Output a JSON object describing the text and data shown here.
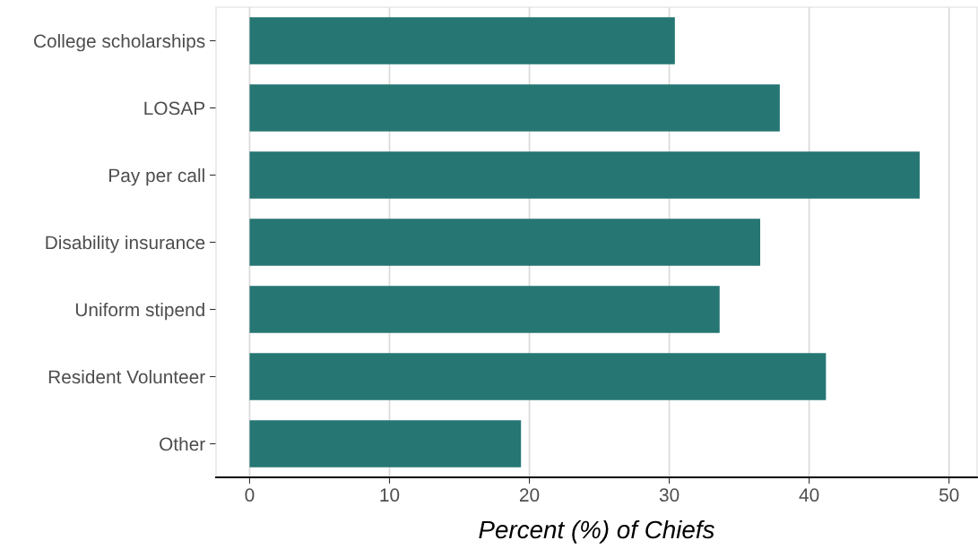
{
  "chart_data": {
    "type": "bar",
    "orientation": "horizontal",
    "xlabel": "Percent (%) of Chiefs",
    "categories": [
      "College scholarships",
      "LOSAP",
      "Pay per call",
      "Disability insurance",
      "Uniform stipend",
      "Resident Volunteer",
      "Other"
    ],
    "values": [
      30.4,
      37.9,
      47.9,
      36.5,
      33.6,
      41.2,
      19.4
    ],
    "color": "#267673",
    "xlim": [
      -2.4,
      52
    ],
    "xticks": [
      0,
      10,
      20,
      30,
      40,
      50
    ],
    "grid": "x"
  }
}
